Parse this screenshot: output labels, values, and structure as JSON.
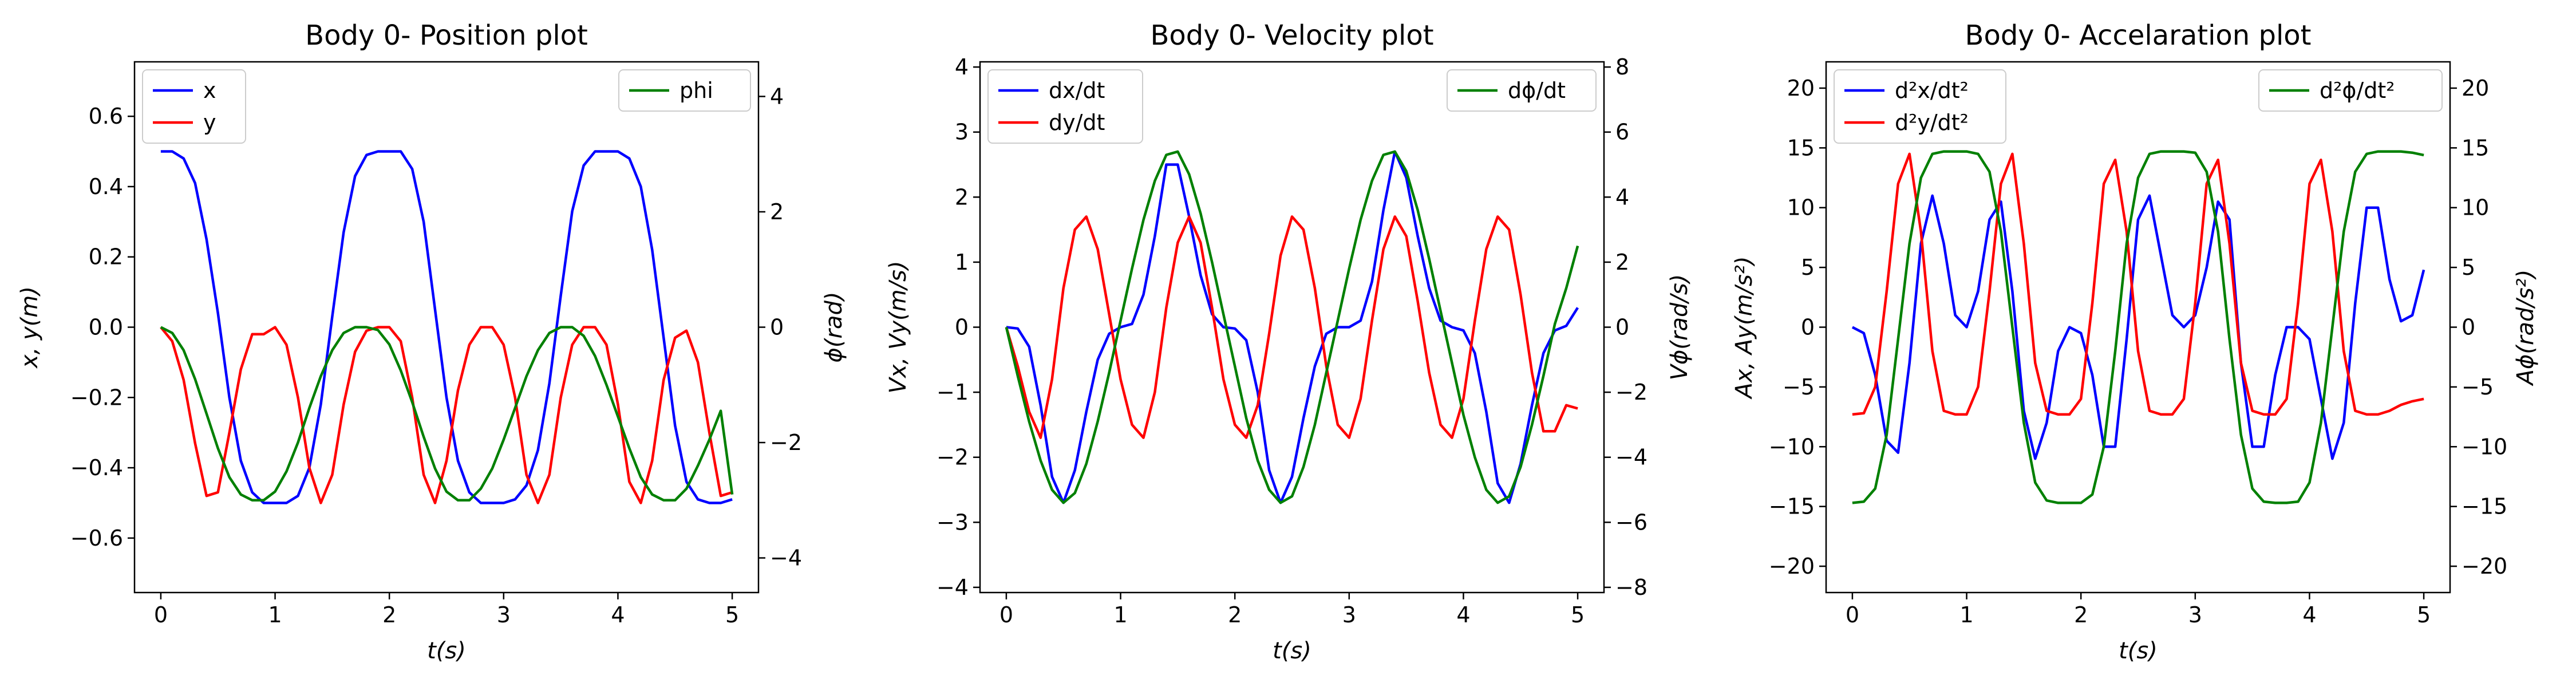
{
  "colors": {
    "x": "#0000ff",
    "y": "#ff0000",
    "phi": "#008000"
  },
  "chart_data": [
    {
      "type": "line",
      "title": "Body 0- Position plot",
      "xlabel": "t(s)",
      "ylabel_left": "x, y(m)",
      "ylabel_right": "ϕ(rad)",
      "xlim": [
        -0.23,
        5.23
      ],
      "ylim_left": [
        -0.755,
        0.755
      ],
      "ylim_right": [
        -4.6,
        4.6
      ],
      "xticks": [
        "0",
        "1",
        "2",
        "3",
        "4",
        "5"
      ],
      "yticks_left": [
        "−0.6",
        "−0.4",
        "−0.2",
        "0.0",
        "0.2",
        "0.4",
        "0.6"
      ],
      "yticks_right": [
        "−4",
        "−2",
        "0",
        "2",
        "4"
      ],
      "legend_left": [
        "x",
        "y"
      ],
      "legend_right": [
        "phi"
      ],
      "series": [
        {
          "name": "x",
          "axis": "left",
          "color": "#0000ff",
          "x": [
            0,
            0.1,
            0.2,
            0.3,
            0.4,
            0.5,
            0.6,
            0.7,
            0.8,
            0.9,
            1.0,
            1.1,
            1.2,
            1.3,
            1.4,
            1.5,
            1.6,
            1.7,
            1.8,
            1.9,
            2.0,
            2.1,
            2.2,
            2.3,
            2.4,
            2.5,
            2.6,
            2.7,
            2.8,
            2.9,
            3.0,
            3.1,
            3.2,
            3.3,
            3.4,
            3.5,
            3.6,
            3.7,
            3.8,
            3.9,
            4.0,
            4.1,
            4.2,
            4.3,
            4.4,
            4.5,
            4.6,
            4.7,
            4.8,
            4.9,
            5.0
          ],
          "y": [
            0.5,
            0.5,
            0.48,
            0.41,
            0.25,
            0.04,
            -0.2,
            -0.38,
            -0.47,
            -0.5,
            -0.5,
            -0.5,
            -0.48,
            -0.4,
            -0.22,
            0.03,
            0.27,
            0.43,
            0.49,
            0.5,
            0.5,
            0.5,
            0.45,
            0.3,
            0.05,
            -0.2,
            -0.38,
            -0.47,
            -0.5,
            -0.5,
            -0.5,
            -0.49,
            -0.45,
            -0.35,
            -0.16,
            0.09,
            0.33,
            0.46,
            0.5,
            0.5,
            0.5,
            0.48,
            0.4,
            0.22,
            -0.03,
            -0.28,
            -0.44,
            -0.49,
            -0.5,
            -0.5,
            -0.49
          ]
        },
        {
          "name": "y",
          "axis": "left",
          "color": "#ff0000",
          "x": [
            0,
            0.1,
            0.2,
            0.3,
            0.4,
            0.5,
            0.6,
            0.7,
            0.8,
            0.9,
            1.0,
            1.1,
            1.2,
            1.3,
            1.4,
            1.5,
            1.6,
            1.7,
            1.8,
            1.9,
            2.0,
            2.1,
            2.2,
            2.3,
            2.4,
            2.5,
            2.6,
            2.7,
            2.8,
            2.9,
            3.0,
            3.1,
            3.2,
            3.3,
            3.4,
            3.5,
            3.6,
            3.7,
            3.8,
            3.9,
            4.0,
            4.1,
            4.2,
            4.3,
            4.4,
            4.5,
            4.6,
            4.7,
            4.8,
            4.9,
            5.0
          ],
          "y": [
            0,
            -0.04,
            -0.15,
            -0.33,
            -0.48,
            -0.47,
            -0.3,
            -0.12,
            -0.02,
            -0.02,
            0,
            -0.05,
            -0.2,
            -0.4,
            -0.5,
            -0.42,
            -0.22,
            -0.07,
            -0.01,
            0,
            0,
            -0.04,
            -0.2,
            -0.42,
            -0.5,
            -0.38,
            -0.18,
            -0.05,
            0,
            0,
            -0.05,
            -0.2,
            -0.42,
            -0.5,
            -0.42,
            -0.2,
            -0.05,
            0,
            0,
            -0.05,
            -0.22,
            -0.44,
            -0.5,
            -0.38,
            -0.15,
            -0.03,
            -0.01,
            -0.1,
            -0.3,
            -0.48,
            -0.47
          ]
        },
        {
          "name": "phi",
          "axis": "right",
          "color": "#008000",
          "x": [
            0,
            0.1,
            0.2,
            0.3,
            0.4,
            0.5,
            0.6,
            0.7,
            0.8,
            0.9,
            1.0,
            1.1,
            1.2,
            1.3,
            1.4,
            1.5,
            1.6,
            1.7,
            1.8,
            1.9,
            2.0,
            2.1,
            2.2,
            2.3,
            2.4,
            2.5,
            2.6,
            2.7,
            2.8,
            2.9,
            3.0,
            3.1,
            3.2,
            3.3,
            3.4,
            3.5,
            3.6,
            3.7,
            3.8,
            3.9,
            4.0,
            4.1,
            4.2,
            4.3,
            4.4,
            4.5,
            4.6,
            4.7,
            4.8,
            4.9,
            5.0
          ],
          "y": [
            0,
            -0.1,
            -0.4,
            -0.9,
            -1.5,
            -2.1,
            -2.6,
            -2.9,
            -3.0,
            -3.0,
            -2.85,
            -2.5,
            -2.0,
            -1.4,
            -0.85,
            -0.4,
            -0.1,
            0,
            0,
            -0.05,
            -0.3,
            -0.75,
            -1.3,
            -1.9,
            -2.45,
            -2.85,
            -3.0,
            -3.0,
            -2.8,
            -2.45,
            -1.95,
            -1.4,
            -0.85,
            -0.4,
            -0.1,
            0,
            0,
            -0.15,
            -0.5,
            -1.0,
            -1.55,
            -2.1,
            -2.6,
            -2.9,
            -3.0,
            -3.0,
            -2.8,
            -2.4,
            -1.95,
            -1.45,
            -2.9
          ]
        }
      ]
    },
    {
      "type": "line",
      "title": "Body 0- Velocity plot",
      "xlabel": "t(s)",
      "ylabel_left": "Vx, Vy(m/s)",
      "ylabel_right": "Vϕ(rad/s)",
      "xlim": [
        -0.23,
        5.23
      ],
      "ylim_left": [
        -4.08,
        4.08
      ],
      "ylim_right": [
        -8.16,
        8.16
      ],
      "xticks": [
        "0",
        "1",
        "2",
        "3",
        "4",
        "5"
      ],
      "yticks_left": [
        "−4",
        "−3",
        "−2",
        "−1",
        "0",
        "1",
        "2",
        "3",
        "4"
      ],
      "yticks_right": [
        "−8",
        "−6",
        "−4",
        "−2",
        "0",
        "2",
        "4",
        "6",
        "8"
      ],
      "legend_left": [
        "dx/dt",
        "dy/dt"
      ],
      "legend_right": [
        "dϕ/dt"
      ],
      "series": [
        {
          "name": "dx/dt",
          "axis": "left",
          "color": "#0000ff",
          "x": [
            0,
            0.1,
            0.2,
            0.3,
            0.4,
            0.5,
            0.6,
            0.7,
            0.8,
            0.9,
            1.0,
            1.1,
            1.2,
            1.3,
            1.4,
            1.5,
            1.6,
            1.7,
            1.8,
            1.9,
            2.0,
            2.1,
            2.2,
            2.3,
            2.4,
            2.5,
            2.6,
            2.7,
            2.8,
            2.9,
            3.0,
            3.1,
            3.2,
            3.3,
            3.4,
            3.5,
            3.6,
            3.7,
            3.8,
            3.9,
            4.0,
            4.1,
            4.2,
            4.3,
            4.4,
            4.5,
            4.6,
            4.7,
            4.8,
            4.9,
            5.0
          ],
          "y": [
            0,
            -0.02,
            -0.3,
            -1.2,
            -2.3,
            -2.7,
            -2.2,
            -1.3,
            -0.5,
            -0.1,
            0,
            0.05,
            0.5,
            1.4,
            2.5,
            2.5,
            1.7,
            0.8,
            0.2,
            0,
            -0.02,
            -0.2,
            -1.0,
            -2.2,
            -2.7,
            -2.3,
            -1.4,
            -0.6,
            -0.1,
            0,
            0,
            0.1,
            0.7,
            1.8,
            2.7,
            2.3,
            1.4,
            0.6,
            0.1,
            0,
            -0.05,
            -0.4,
            -1.3,
            -2.4,
            -2.7,
            -2.1,
            -1.2,
            -0.4,
            -0.05,
            0.02,
            0.3
          ]
        },
        {
          "name": "dy/dt",
          "axis": "left",
          "color": "#ff0000",
          "x": [
            0,
            0.1,
            0.2,
            0.3,
            0.4,
            0.5,
            0.6,
            0.7,
            0.8,
            0.9,
            1.0,
            1.1,
            1.2,
            1.3,
            1.4,
            1.5,
            1.6,
            1.7,
            1.8,
            1.9,
            2.0,
            2.1,
            2.2,
            2.3,
            2.4,
            2.5,
            2.6,
            2.7,
            2.8,
            2.9,
            3.0,
            3.1,
            3.2,
            3.3,
            3.4,
            3.5,
            3.6,
            3.7,
            3.8,
            3.9,
            4.0,
            4.1,
            4.2,
            4.3,
            4.4,
            4.5,
            4.6,
            4.7,
            4.8,
            4.9,
            5.0
          ],
          "y": [
            0,
            -0.6,
            -1.3,
            -1.7,
            -0.8,
            0.6,
            1.5,
            1.7,
            1.2,
            0.2,
            -0.8,
            -1.5,
            -1.7,
            -1.0,
            0.3,
            1.3,
            1.7,
            1.3,
            0.3,
            -0.8,
            -1.5,
            -1.7,
            -1.2,
            -0.1,
            1.1,
            1.7,
            1.5,
            0.6,
            -0.6,
            -1.5,
            -1.7,
            -1.1,
            0.1,
            1.2,
            1.7,
            1.4,
            0.4,
            -0.7,
            -1.5,
            -1.7,
            -1.1,
            0.1,
            1.2,
            1.7,
            1.5,
            0.5,
            -0.7,
            -1.6,
            -1.6,
            -1.2,
            -1.25
          ]
        },
        {
          "name": "dϕ/dt",
          "axis": "right",
          "color": "#008000",
          "x": [
            0,
            0.1,
            0.2,
            0.3,
            0.4,
            0.5,
            0.6,
            0.7,
            0.8,
            0.9,
            1.0,
            1.1,
            1.2,
            1.3,
            1.4,
            1.5,
            1.6,
            1.7,
            1.8,
            1.9,
            2.0,
            2.1,
            2.2,
            2.3,
            2.4,
            2.5,
            2.6,
            2.7,
            2.8,
            2.9,
            3.0,
            3.1,
            3.2,
            3.3,
            3.4,
            3.5,
            3.6,
            3.7,
            3.8,
            3.9,
            4.0,
            4.1,
            4.2,
            4.3,
            4.4,
            4.5,
            4.6,
            4.7,
            4.8,
            4.9,
            5.0
          ],
          "y": [
            0,
            -1.5,
            -2.9,
            -4.1,
            -5.0,
            -5.4,
            -5.1,
            -4.2,
            -2.9,
            -1.4,
            0.2,
            1.8,
            3.3,
            4.5,
            5.3,
            5.4,
            4.7,
            3.5,
            2.0,
            0.4,
            -1.2,
            -2.8,
            -4.1,
            -5.0,
            -5.4,
            -5.2,
            -4.3,
            -3.0,
            -1.4,
            0.2,
            1.8,
            3.3,
            4.5,
            5.3,
            5.4,
            4.8,
            3.6,
            2.1,
            0.5,
            -1.1,
            -2.7,
            -4.0,
            -5.0,
            -5.4,
            -5.2,
            -4.3,
            -3.0,
            -1.5,
            0.1,
            1.2,
            2.5
          ]
        }
      ]
    },
    {
      "type": "line",
      "title": "Body 0- Accelaration plot",
      "xlabel": "t(s)",
      "ylabel_left": "Ax, Ay(m/s²)",
      "ylabel_right": "Aϕ(rad/s²)",
      "xlim": [
        -0.23,
        5.23
      ],
      "ylim_left": [
        -22.2,
        22.2
      ],
      "ylim_right": [
        -22.2,
        22.2
      ],
      "xticks": [
        "0",
        "1",
        "2",
        "3",
        "4",
        "5"
      ],
      "yticks_left": [
        "−20",
        "−15",
        "−10",
        "−5",
        "0",
        "5",
        "10",
        "15",
        "20"
      ],
      "yticks_right": [
        "−20",
        "−15",
        "−10",
        "−5",
        "0",
        "5",
        "10",
        "15",
        "20"
      ],
      "legend_left": [
        "d²x/dt²",
        "d²y/dt²"
      ],
      "legend_right": [
        "d²ϕ/dt²"
      ],
      "series": [
        {
          "name": "d²x/dt²",
          "axis": "left",
          "color": "#0000ff",
          "x": [
            0,
            0.1,
            0.2,
            0.3,
            0.4,
            0.5,
            0.6,
            0.7,
            0.8,
            0.9,
            1.0,
            1.1,
            1.2,
            1.3,
            1.4,
            1.5,
            1.6,
            1.7,
            1.8,
            1.9,
            2.0,
            2.1,
            2.2,
            2.3,
            2.4,
            2.5,
            2.6,
            2.7,
            2.8,
            2.9,
            3.0,
            3.1,
            3.2,
            3.3,
            3.4,
            3.5,
            3.6,
            3.7,
            3.8,
            3.9,
            4.0,
            4.1,
            4.2,
            4.3,
            4.4,
            4.5,
            4.6,
            4.7,
            4.8,
            4.9,
            5.0
          ],
          "y": [
            0,
            -0.5,
            -4,
            -9.5,
            -10.5,
            -3,
            7,
            11,
            7,
            1,
            0,
            3,
            9,
            10.5,
            3,
            -7,
            -11,
            -8,
            -2,
            0,
            -0.5,
            -4,
            -10,
            -10,
            -1,
            9,
            11,
            6,
            1,
            0,
            1,
            5,
            10.5,
            9,
            -3,
            -10,
            -10,
            -4,
            0,
            0,
            -1,
            -6,
            -11,
            -8,
            2,
            10,
            10,
            4,
            0.5,
            1,
            4.8
          ]
        },
        {
          "name": "d²y/dt²",
          "axis": "left",
          "color": "#ff0000",
          "x": [
            0,
            0.1,
            0.2,
            0.3,
            0.4,
            0.5,
            0.6,
            0.7,
            0.8,
            0.9,
            1.0,
            1.1,
            1.2,
            1.3,
            1.4,
            1.5,
            1.6,
            1.7,
            1.8,
            1.9,
            2.0,
            2.1,
            2.2,
            2.3,
            2.4,
            2.5,
            2.6,
            2.7,
            2.8,
            2.9,
            3.0,
            3.1,
            3.2,
            3.3,
            3.4,
            3.5,
            3.6,
            3.7,
            3.8,
            3.9,
            4.0,
            4.1,
            4.2,
            4.3,
            4.4,
            4.5,
            4.6,
            4.7,
            4.8,
            4.9,
            5.0
          ],
          "y": [
            -7.3,
            -7.2,
            -5,
            3,
            12,
            14.5,
            8,
            -2,
            -7,
            -7.3,
            -7.3,
            -5,
            3,
            12,
            14.5,
            7,
            -3,
            -7,
            -7.3,
            -7.3,
            -6,
            2,
            12,
            14,
            8,
            -2,
            -7,
            -7.3,
            -7.3,
            -6,
            2,
            12,
            14,
            7,
            -3,
            -7,
            -7.3,
            -7.3,
            -6,
            2,
            12,
            14,
            8,
            -2,
            -7,
            -7.3,
            -7.3,
            -7,
            -6.5,
            -6.2,
            -6
          ]
        },
        {
          "name": "d²ϕ/dt²",
          "axis": "right",
          "color": "#008000",
          "x": [
            0,
            0.1,
            0.2,
            0.3,
            0.4,
            0.5,
            0.6,
            0.7,
            0.8,
            0.9,
            1.0,
            1.1,
            1.2,
            1.3,
            1.4,
            1.5,
            1.6,
            1.7,
            1.8,
            1.9,
            2.0,
            2.1,
            2.2,
            2.3,
            2.4,
            2.5,
            2.6,
            2.7,
            2.8,
            2.9,
            3.0,
            3.1,
            3.2,
            3.3,
            3.4,
            3.5,
            3.6,
            3.7,
            3.8,
            3.9,
            4.0,
            4.1,
            4.2,
            4.3,
            4.4,
            4.5,
            4.6,
            4.7,
            4.8,
            4.9,
            5.0
          ],
          "y": [
            -14.7,
            -14.6,
            -13.5,
            -9,
            -1,
            7,
            12.5,
            14.5,
            14.7,
            14.7,
            14.7,
            14.5,
            13,
            8,
            0,
            -8,
            -13,
            -14.5,
            -14.7,
            -14.7,
            -14.7,
            -14,
            -10,
            -2,
            7,
            12.5,
            14.5,
            14.7,
            14.7,
            14.7,
            14.6,
            13,
            8,
            -1,
            -9,
            -13.5,
            -14.6,
            -14.7,
            -14.7,
            -14.6,
            -13,
            -8,
            0,
            8,
            13,
            14.5,
            14.7,
            14.7,
            14.7,
            14.6,
            14.4
          ]
        }
      ]
    }
  ]
}
